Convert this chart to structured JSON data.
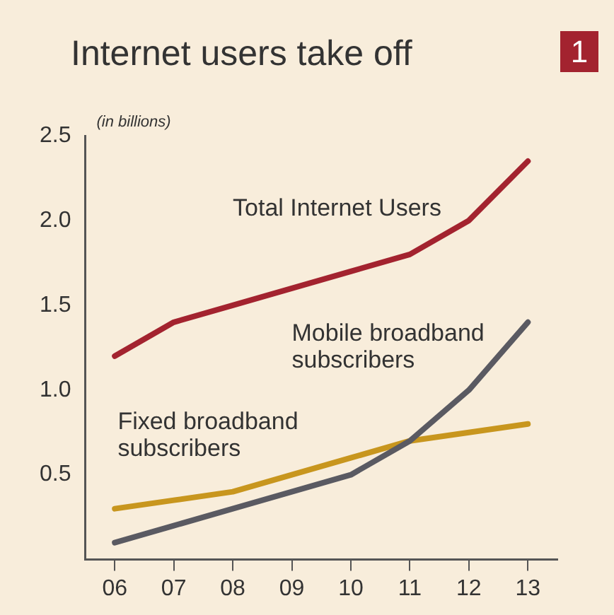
{
  "chart_data": {
    "type": "line",
    "title": "Internet users take off",
    "ylabel": "(in billions)",
    "annotations": [
      "1"
    ],
    "categories": [
      "06",
      "07",
      "08",
      "09",
      "10",
      "11",
      "12",
      "13"
    ],
    "ylim": [
      0,
      2.5
    ],
    "yticks": [
      0.5,
      {
        "value": 1,
        "label": "1.0"
      },
      1.5,
      {
        "value": 2,
        "label": "2.0"
      },
      2.5
    ],
    "grid": false,
    "legend": false,
    "marker": "none",
    "line_style": "solid",
    "series": [
      {
        "name": "Total Internet Users",
        "color": "#a3232f",
        "values": [
          1.2,
          1.4,
          1.5,
          1.6,
          1.7,
          1.8,
          2.0,
          2.35
        ]
      },
      {
        "name": "Mobile broadband subscribers",
        "color": "#5a5a62",
        "values": [
          0.1,
          0.2,
          0.3,
          0.4,
          0.5,
          0.7,
          1.0,
          1.4
        ]
      },
      {
        "name": "Fixed broadband subscribers",
        "color": "#c8961e",
        "values": [
          0.3,
          0.35,
          0.4,
          0.5,
          0.6,
          0.7,
          0.75,
          0.8
        ]
      }
    ]
  }
}
